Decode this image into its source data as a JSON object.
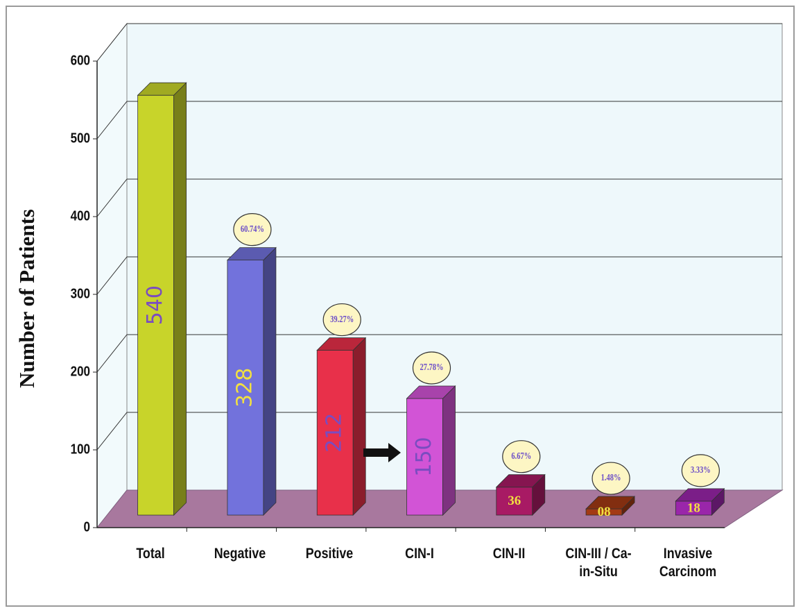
{
  "chart_data": {
    "type": "bar3d",
    "y_label": "Number of Patients",
    "categories": [
      "Total",
      "Negative",
      "Positive",
      "CIN-I",
      "CIN-II",
      "CIN-III / Ca-in-Situ",
      "Invasive Carcinom"
    ],
    "values": [
      540,
      328,
      212,
      150,
      36,
      8,
      18
    ],
    "value_labels": [
      "540",
      "328",
      "212",
      "150",
      "36",
      "08",
      "18"
    ],
    "percent_labels": [
      null,
      "60.74%",
      "39.27%",
      "27.78%",
      "6.67%",
      "1.48%",
      "3.33%"
    ],
    "colors": [
      "#c8d42a",
      "#7272dc",
      "#e8304a",
      "#d254d6",
      "#a81a64",
      "#a33a14",
      "#9a26aa"
    ],
    "label_colors": [
      "#7a4cc0",
      "#f2e040",
      "#7a4cc0",
      "#7a4cc0",
      "#f2e040",
      "#f2e040",
      "#f2e040"
    ],
    "ylim": [
      0,
      600
    ],
    "yticks": [
      0,
      100,
      200,
      300,
      400,
      500,
      600
    ],
    "grid": true
  }
}
